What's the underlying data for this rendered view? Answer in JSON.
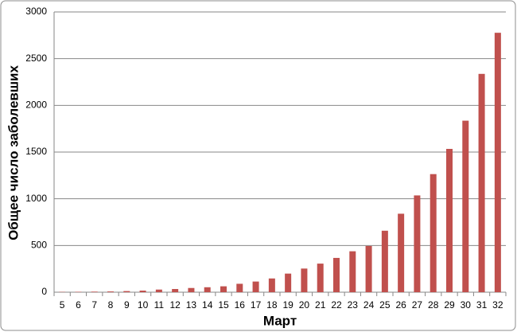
{
  "chart_data": {
    "type": "bar",
    "x_label": "Март",
    "y_label": "Общее число заболевших",
    "categories": [
      "5",
      "6",
      "7",
      "8",
      "9",
      "10",
      "11",
      "12",
      "13",
      "14",
      "15",
      "16",
      "17",
      "18",
      "19",
      "20",
      "21",
      "22",
      "23",
      "24",
      "25",
      "26",
      "27",
      "28",
      "29",
      "30",
      "31",
      "32"
    ],
    "values": [
      3,
      4,
      6,
      8,
      12,
      17,
      28,
      34,
      45,
      53,
      63,
      90,
      114,
      147,
      199,
      253,
      306,
      367,
      438,
      495,
      658,
      840,
      1036,
      1264,
      1534,
      1836,
      2337,
      2777
    ],
    "color": "#c0504d",
    "ylim": [
      0,
      3000
    ],
    "yticks": [
      0,
      500,
      1000,
      1500,
      2000,
      2500,
      3000
    ],
    "grid": true
  }
}
